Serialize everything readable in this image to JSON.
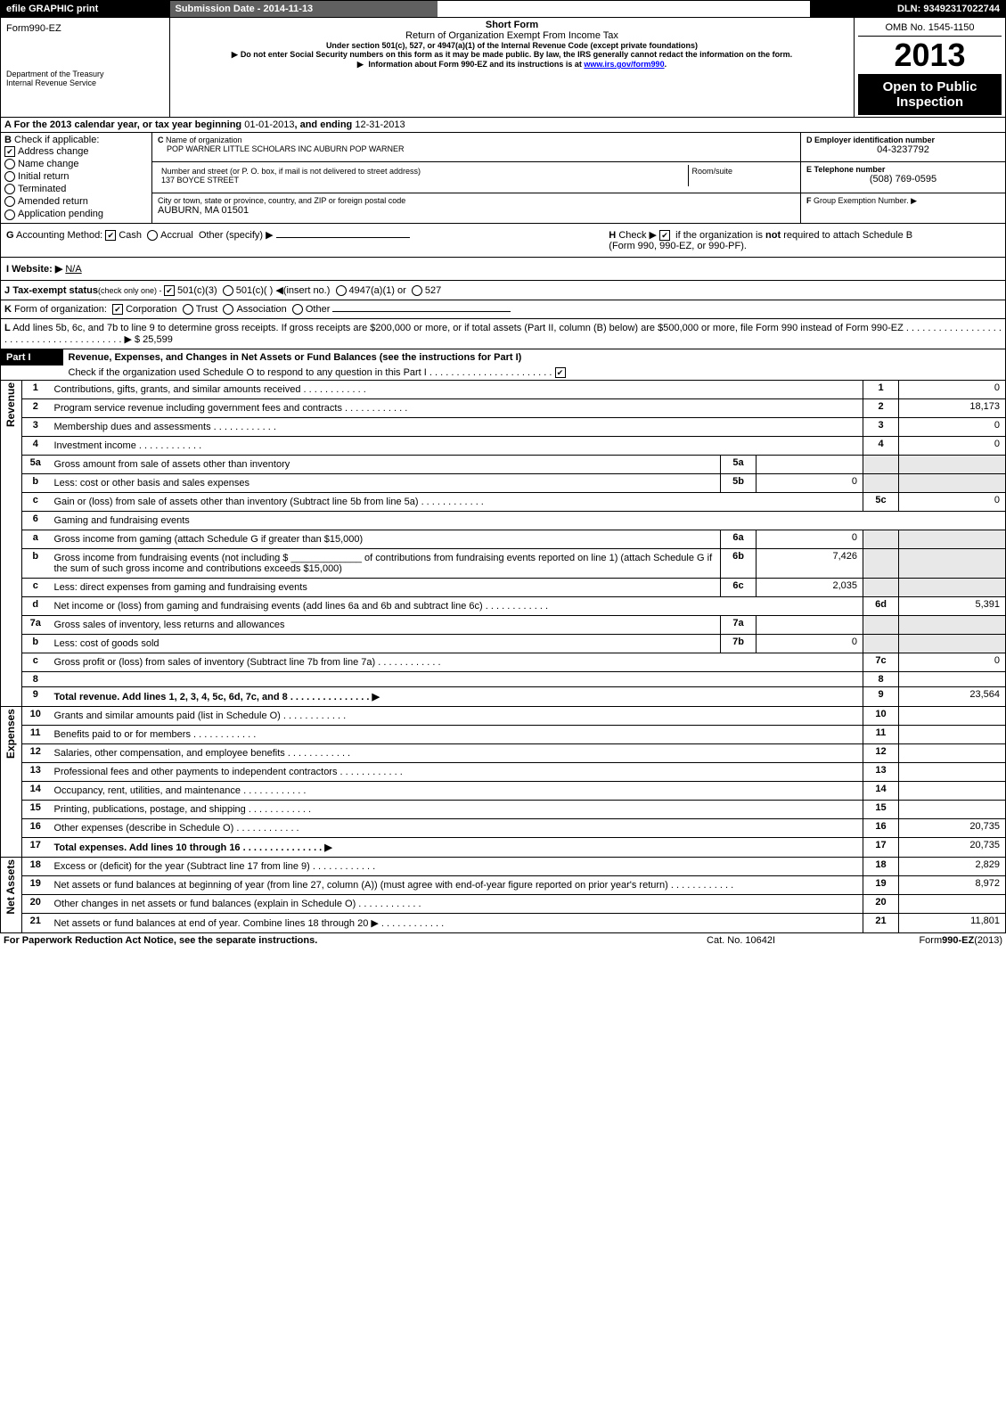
{
  "topbar": {
    "efile_left": "efile GRAPHIC print",
    "submission": "Submission Date - 2014-11-13",
    "dln": "DLN: 93492317022744"
  },
  "header": {
    "form": "Form990-EZ",
    "dept1": "Department of the Treasury",
    "dept2": "Internal Revenue Service",
    "short": "Short Form",
    "title": "Return of Organization Exempt From Income Tax",
    "sub1": "Under section 501(c), 527, or 4947(a)(1) of the Internal Revenue Code (except private foundations)",
    "sub2": "Do not enter Social Security numbers on this form as it may be made public. By law, the IRS generally cannot redact the information on the form.",
    "sub3_pre": "Information about Form 990-EZ and its instructions is at ",
    "sub3_link": "www.irs.gov/form990",
    "omb": "OMB No. 1545-1150",
    "year": "2013",
    "open": "Open to Public Inspection"
  },
  "lineA": {
    "pre": "For the 2013 calendar year, or tax year beginning ",
    "begin": "01-01-2013",
    "mid": ", and ending ",
    "end": "12-31-2013"
  },
  "B": {
    "label": "Check if applicable:",
    "items": [
      {
        "label": "Address change",
        "checked": true,
        "type": "box"
      },
      {
        "label": "Name change",
        "checked": false,
        "type": "radio"
      },
      {
        "label": "Initial return",
        "checked": false,
        "type": "radio"
      },
      {
        "label": "Terminated",
        "checked": false,
        "type": "radio"
      },
      {
        "label": "Amended return",
        "checked": false,
        "type": "radio"
      },
      {
        "label": "Application pending",
        "checked": false,
        "type": "radio"
      }
    ]
  },
  "C": {
    "name_label": "Name of organization",
    "name": "POP WARNER LITTLE SCHOLARS INC AUBURN POP WARNER",
    "addr_label": "Number and street (or P. O. box, if mail is not delivered to street address)",
    "room_label": "Room/suite",
    "addr": "137 BOYCE STREET",
    "city_label": "City or town, state or province, country, and ZIP or foreign postal code",
    "city": "AUBURN, MA  01501"
  },
  "D": {
    "label": "Employer identification number",
    "val": "04-3237792"
  },
  "E": {
    "label": "Telephone number",
    "val": "(508) 769-0595"
  },
  "F": {
    "label": "Group Exemption Number.",
    "arrow": "▶"
  },
  "G": {
    "label": "Accounting Method:",
    "cash": "Cash",
    "accrual": "Accrual",
    "other": "Other (specify) ▶"
  },
  "H": {
    "label_pre": "Check ▶ ",
    "label_post": " if the organization is ",
    "not": "not",
    "tail": " required to attach Schedule B",
    "tail2": "(Form 990, 990-EZ, or 990-PF)."
  },
  "I": {
    "label": "Website: ▶",
    "val": "N/A"
  },
  "J": {
    "label": "Tax-exempt status",
    "note": "(check only one) - ",
    "o1": "501(c)(3)",
    "o2": "501(c)(   ) ◀(insert no.)",
    "o3": "4947(a)(1) or",
    "o4": "527"
  },
  "K": {
    "label": "Form of organization:",
    "c": "Corporation",
    "t": "Trust",
    "a": "Association",
    "o": "Other"
  },
  "L": {
    "text": "Add lines 5b, 6c, and 7b to line 9 to determine gross receipts. If gross receipts are $200,000 or more, or if total assets (Part II, column (B) below) are $500,000 or more, file Form 990 instead of Form 990-EZ",
    "dots": ". . . . . . . . . . . . . . . . . . . . . . . . . . . . . . . . . . . . . . . . ▶",
    "val": "$ 25,599"
  },
  "partI": {
    "title": "Part I",
    "desc": "Revenue, Expenses, and Changes in Net Assets or Fund Balances (see the instructions for Part I)",
    "check_line": "Check if the organization used Schedule O to respond to any question in this Part I"
  },
  "sections": {
    "rev": "Revenue",
    "exp": "Expenses",
    "na": "Net Assets"
  },
  "rows": [
    {
      "n": "1",
      "t": "Contributions, gifts, grants, and similar amounts received",
      "box": "1",
      "v": "0"
    },
    {
      "n": "2",
      "t": "Program service revenue including government fees and contracts",
      "box": "2",
      "v": "18,173"
    },
    {
      "n": "3",
      "t": "Membership dues and assessments",
      "box": "3",
      "v": "0"
    },
    {
      "n": "4",
      "t": "Investment income",
      "box": "4",
      "v": "0"
    },
    {
      "n": "5a",
      "t": "Gross amount from sale of assets other than inventory",
      "ibox": "5a",
      "iv": ""
    },
    {
      "n": "b",
      "t": "Less: cost or other basis and sales expenses",
      "ibox": "5b",
      "iv": "0"
    },
    {
      "n": "c",
      "t": "Gain or (loss) from sale of assets other than inventory (Subtract line 5b from line 5a)",
      "box": "5c",
      "v": "0"
    },
    {
      "n": "6",
      "t": "Gaming and fundraising events"
    },
    {
      "n": "a",
      "t": "Gross income from gaming (attach Schedule G if greater than $15,000)",
      "ibox": "6a",
      "iv": "0"
    },
    {
      "n": "b",
      "t": "Gross income from fundraising events (not including $ _____________ of contributions from fundraising events reported on line 1) (attach Schedule G if the sum of such gross income and contributions exceeds $15,000)",
      "ibox": "6b",
      "iv": "7,426"
    },
    {
      "n": "c",
      "t": "Less: direct expenses from gaming and fundraising events",
      "ibox": "6c",
      "iv": "2,035"
    },
    {
      "n": "d",
      "t": "Net income or (loss) from gaming and fundraising events (add lines 6a and 6b and subtract line 6c)",
      "box": "6d",
      "v": "5,391"
    },
    {
      "n": "7a",
      "t": "Gross sales of inventory, less returns and allowances",
      "ibox": "7a",
      "iv": ""
    },
    {
      "n": "b",
      "t": "Less: cost of goods sold",
      "ibox": "7b",
      "iv": "0"
    },
    {
      "n": "c",
      "t": "Gross profit or (loss) from sales of inventory (Subtract line 7b from line 7a)",
      "box": "7c",
      "v": "0"
    },
    {
      "n": "8",
      "t": "",
      "box": "8",
      "v": ""
    },
    {
      "n": "9",
      "t": "Total revenue. Add lines 1, 2, 3, 4, 5c, 6d, 7c, and 8",
      "box": "9",
      "v": "23,564",
      "bold": true,
      "arrow": true
    },
    {
      "n": "10",
      "t": "Grants and similar amounts paid (list in Schedule O)",
      "box": "10",
      "v": ""
    },
    {
      "n": "11",
      "t": "Benefits paid to or for members",
      "box": "11",
      "v": ""
    },
    {
      "n": "12",
      "t": "Salaries, other compensation, and employee benefits",
      "box": "12",
      "v": ""
    },
    {
      "n": "13",
      "t": "Professional fees and other payments to independent contractors",
      "box": "13",
      "v": ""
    },
    {
      "n": "14",
      "t": "Occupancy, rent, utilities, and maintenance",
      "box": "14",
      "v": ""
    },
    {
      "n": "15",
      "t": "Printing, publications, postage, and shipping",
      "box": "15",
      "v": ""
    },
    {
      "n": "16",
      "t": "Other expenses (describe in Schedule O)",
      "box": "16",
      "v": "20,735"
    },
    {
      "n": "17",
      "t": "Total expenses. Add lines 10 through 16",
      "box": "17",
      "v": "20,735",
      "bold": true,
      "arrow": true
    },
    {
      "n": "18",
      "t": "Excess or (deficit) for the year (Subtract line 17 from line 9)",
      "box": "18",
      "v": "2,829"
    },
    {
      "n": "19",
      "t": "Net assets or fund balances at beginning of year (from line 27, column (A)) (must agree with end-of-year figure reported on prior year's return)",
      "box": "19",
      "v": "8,972"
    },
    {
      "n": "20",
      "t": "Other changes in net assets or fund balances (explain in Schedule O)",
      "box": "20",
      "v": ""
    },
    {
      "n": "21",
      "t": "Net assets or fund balances at end of year. Combine lines 18 through 20 ▶",
      "box": "21",
      "v": "11,801"
    }
  ],
  "footer": {
    "left": "For Paperwork Reduction Act Notice, see the separate instructions.",
    "mid": "Cat. No. 10642I",
    "right": "Form990-EZ(2013)"
  }
}
